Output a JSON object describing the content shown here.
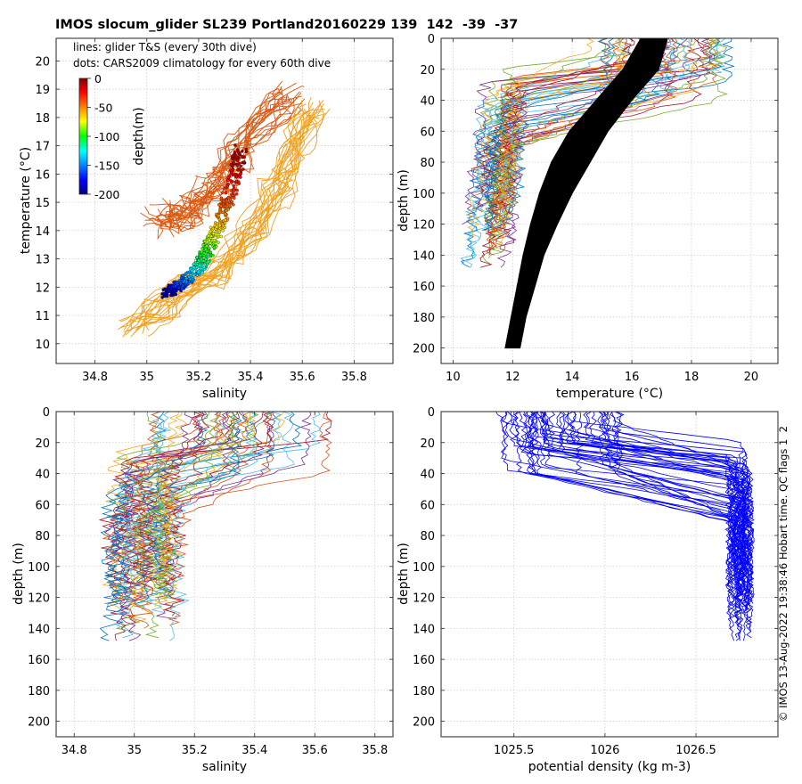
{
  "figure": {
    "title": "IMOS slocum_glider SL239 Portland20160229 139  142  -39  -37",
    "credit": "© IMOS 13-Aug-2022 19:38:46 Hobart time. QC flags 1  2"
  },
  "chart_data": [
    {
      "id": "ts",
      "type": "scatter",
      "xlabel": "salinity",
      "ylabel": "temperature (°C)",
      "xlim": [
        34.65,
        35.95
      ],
      "ylim": [
        9.3,
        20.8
      ],
      "xticks": [
        34.8,
        35,
        35.2,
        35.4,
        35.6,
        35.8
      ],
      "xtick_labels": [
        "34.8",
        "35",
        "35.2",
        "35.4",
        "35.6",
        "35.8"
      ],
      "yticks": [
        10,
        11,
        12,
        13,
        14,
        15,
        16,
        17,
        18,
        19,
        20
      ],
      "ytick_labels": [
        "10",
        "11",
        "12",
        "13",
        "14",
        "15",
        "16",
        "17",
        "18",
        "19",
        "20"
      ],
      "grid": true,
      "annotations": [
        "lines: glider T&S (every 30th dive)",
        "dots: CARS2009 climatology for every 60th dive"
      ],
      "colorbar": {
        "label": "depth(m)",
        "range": [
          -200,
          0
        ],
        "ticks": [
          0,
          -50,
          -100,
          -150,
          -200
        ],
        "tick_labels": [
          "0",
          "-50",
          "-100",
          "-150",
          "-200"
        ],
        "colormap": "jet"
      },
      "series": [
        {
          "kind": "glider_lines_cool",
          "color": "#d95a14",
          "points": [
            [
              35.05,
              14.6
            ],
            [
              35.1,
              14.3
            ],
            [
              35.15,
              14.5
            ],
            [
              35.2,
              14.9
            ],
            [
              35.25,
              15.4
            ],
            [
              35.3,
              15.9
            ],
            [
              35.35,
              16.6
            ],
            [
              35.42,
              17.6
            ],
            [
              35.5,
              18.4
            ],
            [
              35.58,
              19.0
            ]
          ]
        },
        {
          "kind": "glider_lines_warm",
          "color": "#f0a01e",
          "points": [
            [
              34.95,
              10.7
            ],
            [
              35.05,
              11.3
            ],
            [
              35.15,
              11.9
            ],
            [
              35.25,
              12.5
            ],
            [
              35.35,
              13.4
            ],
            [
              35.42,
              14.3
            ],
            [
              35.5,
              15.3
            ],
            [
              35.55,
              16.4
            ],
            [
              35.6,
              17.5
            ],
            [
              35.65,
              18.6
            ]
          ]
        },
        {
          "kind": "climatology_dots",
          "points": [
            [
              35.07,
              11.7,
              -200
            ],
            [
              35.1,
              11.9,
              -185
            ],
            [
              35.13,
              12.1,
              -165
            ],
            [
              35.16,
              12.3,
              -150
            ],
            [
              35.19,
              12.6,
              -130
            ],
            [
              35.21,
              12.9,
              -115
            ],
            [
              35.23,
              13.2,
              -100
            ],
            [
              35.25,
              13.6,
              -85
            ],
            [
              35.27,
              14.0,
              -70
            ],
            [
              35.29,
              14.5,
              -55
            ],
            [
              35.31,
              15.0,
              -40
            ],
            [
              35.33,
              15.6,
              -28
            ],
            [
              35.35,
              16.3,
              -15
            ],
            [
              35.36,
              16.9,
              -5
            ]
          ]
        }
      ]
    },
    {
      "id": "temp_depth",
      "type": "line",
      "xlabel": "temperature (°C)",
      "ylabel": "depth (m)",
      "xlim": [
        9.6,
        20.9
      ],
      "ylim": [
        210,
        0
      ],
      "xticks": [
        10,
        12,
        14,
        16,
        18,
        20
      ],
      "xtick_labels": [
        "10",
        "12",
        "14",
        "16",
        "18",
        "20"
      ],
      "yticks": [
        0,
        20,
        40,
        60,
        80,
        100,
        120,
        140,
        160,
        180,
        200
      ],
      "ytick_labels": [
        "0",
        "20",
        "40",
        "60",
        "80",
        "100",
        "120",
        "140",
        "160",
        "180",
        "200"
      ],
      "grid": true,
      "climatology_band": {
        "color": "#000000",
        "depths": [
          0,
          20,
          40,
          60,
          80,
          100,
          120,
          140,
          160,
          180,
          200
        ],
        "t_left": [
          16.3,
          15.7,
          14.8,
          13.9,
          13.3,
          12.9,
          12.6,
          12.35,
          12.15,
          11.95,
          11.75
        ],
        "t_right": [
          17.2,
          16.9,
          16.0,
          15.2,
          14.6,
          14.0,
          13.5,
          13.05,
          12.75,
          12.45,
          12.25
        ]
      },
      "glider_range": {
        "surface_t": [
          14.5,
          19.3
        ],
        "deep_t": [
          11.0,
          12.5
        ],
        "max_depth": [
          95,
          150
        ]
      }
    },
    {
      "id": "sal_depth",
      "type": "line",
      "xlabel": "salinity",
      "ylabel": "depth (m)",
      "xlim": [
        34.74,
        35.86
      ],
      "ylim": [
        210,
        0
      ],
      "xticks": [
        34.8,
        35,
        35.2,
        35.4,
        35.6,
        35.8
      ],
      "xtick_labels": [
        "34.8",
        "35",
        "35.2",
        "35.4",
        "35.6",
        "35.8"
      ],
      "yticks": [
        0,
        20,
        40,
        60,
        80,
        100,
        120,
        140,
        160,
        180,
        200
      ],
      "ytick_labels": [
        "0",
        "20",
        "40",
        "60",
        "80",
        "100",
        "120",
        "140",
        "160",
        "180",
        "200"
      ],
      "grid": true,
      "glider_range": {
        "surface_s": [
          35.05,
          35.65
        ],
        "deep_s": [
          34.9,
          35.15
        ],
        "max_depth": [
          95,
          150
        ]
      }
    },
    {
      "id": "dens_depth",
      "type": "line",
      "xlabel": "potential density (kg m-3)",
      "ylabel": "depth (m)",
      "xlim": [
        1025.1,
        1026.95
      ],
      "ylim": [
        210,
        0
      ],
      "xticks": [
        1025.5,
        1026,
        1026.5
      ],
      "xtick_labels": [
        "1025.5",
        "1026",
        "1026.5"
      ],
      "yticks": [
        0,
        20,
        40,
        60,
        80,
        100,
        120,
        140,
        160,
        180,
        200
      ],
      "ytick_labels": [
        "0",
        "20",
        "40",
        "60",
        "80",
        "100",
        "120",
        "140",
        "160",
        "180",
        "200"
      ],
      "grid": true,
      "line_color": "#0000ff",
      "glider_range": {
        "surface_d": [
          1025.38,
          1026.15
        ],
        "deep_d": [
          1026.68,
          1026.8
        ],
        "max_depth": [
          95,
          150
        ]
      }
    }
  ]
}
